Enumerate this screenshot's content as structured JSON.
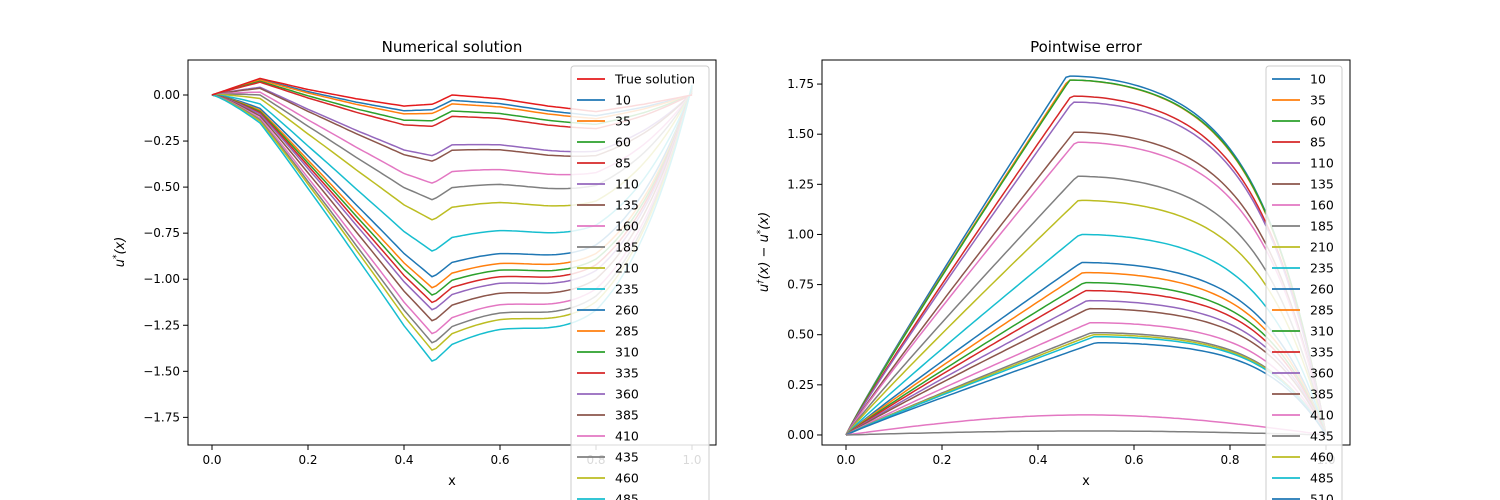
{
  "chart_data": [
    {
      "type": "line",
      "title": "Numerical solution",
      "xlabel": "x",
      "ylabel": "u*(x)",
      "xlim": [
        -0.05,
        1.05
      ],
      "ylim": [
        -1.9,
        0.19
      ],
      "xticks": [
        "0.0",
        "0.2",
        "0.4",
        "0.6",
        "0.8",
        "1.0"
      ],
      "yticks": [
        "0.00",
        "−0.25",
        "−0.50",
        "−0.75",
        "−1.00",
        "−1.25",
        "−1.50",
        "−1.75"
      ],
      "grid": false,
      "legend": "upper-right",
      "x": [
        0,
        0.1,
        0.2,
        0.3,
        0.4,
        0.46,
        0.5,
        0.6,
        0.7,
        0.8,
        0.9,
        1.0
      ],
      "true_solution": {
        "name": "True solution",
        "values": [
          0,
          0.09,
          0.03,
          -0.02,
          -0.06,
          -0.05,
          0.0,
          -0.02,
          -0.06,
          -0.09,
          -0.05,
          0
        ]
      },
      "series_labels": [
        "10",
        "35",
        "60",
        "85",
        "110",
        "135",
        "160",
        "185",
        "210",
        "235",
        "260",
        "285",
        "310",
        "335",
        "360",
        "385",
        "410",
        "435",
        "460",
        "485"
      ],
      "series_depths": [
        0.03,
        0.05,
        0.09,
        0.12,
        0.28,
        0.31,
        0.43,
        0.52,
        0.63,
        0.8,
        0.94,
        1.0,
        1.04,
        1.08,
        1.12,
        1.18,
        1.25,
        1.3,
        1.34,
        1.4
      ]
    },
    {
      "type": "line",
      "title": "Pointwise error",
      "xlabel": "x",
      "ylabel": "u†(x) − u*(x)",
      "xlim": [
        -0.05,
        1.05
      ],
      "ylim": [
        -0.05,
        1.87
      ],
      "xticks": [
        "0.0",
        "0.2",
        "0.4",
        "0.6",
        "0.8",
        "1.0"
      ],
      "yticks": [
        "0.00",
        "0.25",
        "0.50",
        "0.75",
        "1.00",
        "1.25",
        "1.50",
        "1.75"
      ],
      "grid": false,
      "legend": "upper-right",
      "series_labels": [
        "10",
        "35",
        "60",
        "85",
        "110",
        "135",
        "160",
        "185",
        "210",
        "235",
        "260",
        "285",
        "310",
        "335",
        "360",
        "385",
        "410",
        "435",
        "460",
        "485",
        "510"
      ],
      "series_peaks": [
        1.79,
        1.77,
        1.77,
        1.69,
        1.66,
        1.51,
        1.46,
        1.29,
        1.17,
        1.0,
        0.86,
        0.81,
        0.76,
        0.72,
        0.67,
        0.63,
        0.56,
        0.51,
        0.5,
        0.49,
        0.46
      ]
    }
  ],
  "colors": [
    "#1f77b4",
    "#ff7f0e",
    "#2ca02c",
    "#d62728",
    "#9467bd",
    "#8c564b",
    "#e377c2",
    "#7f7f7f",
    "#bcbd22",
    "#17becf"
  ],
  "true_color": "#e41a1c"
}
